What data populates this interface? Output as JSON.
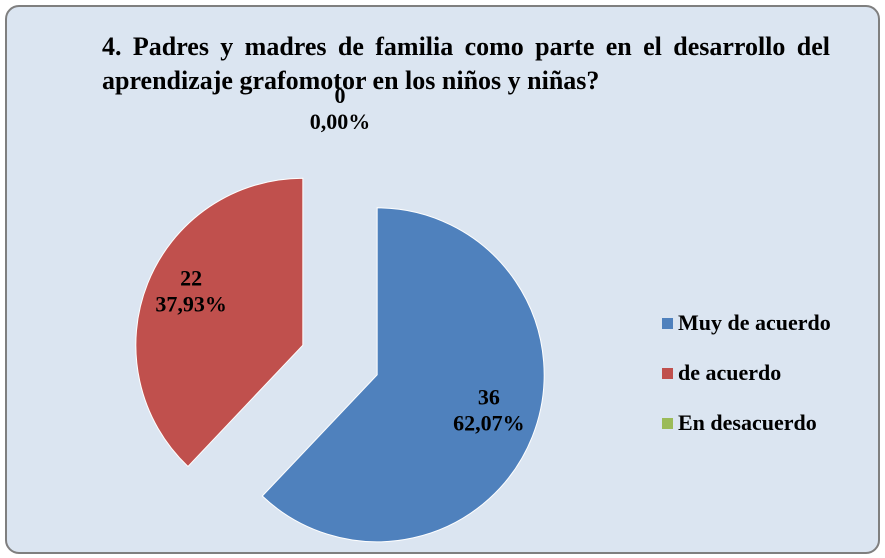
{
  "chart_data": {
    "type": "pie",
    "title": "4. Padres  y madres de familia como parte en el desarrollo del aprendizaje grafomotor en los niños y niñas?",
    "categories": [
      "Muy de acuerdo",
      "de acuerdo",
      "En  desacuerdo"
    ],
    "values": [
      36,
      22,
      0
    ],
    "percentages": [
      62.07,
      37.93,
      0
    ],
    "percentage_labels": [
      "62,07%",
      "37,93%",
      "0,00%"
    ],
    "colors": [
      "#4f81bd",
      "#c0504d",
      "#9bbb59"
    ],
    "legend": "right"
  }
}
